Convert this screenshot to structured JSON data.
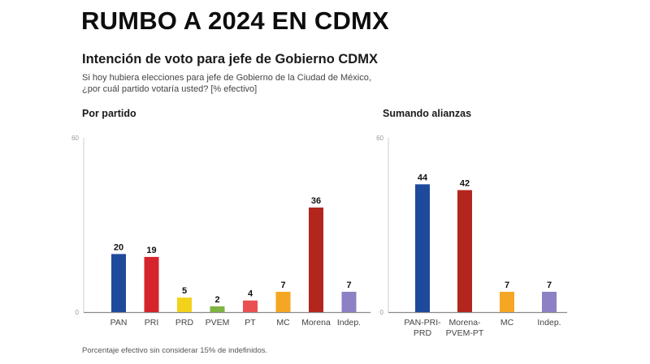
{
  "header": {
    "title": "RUMBO A 2024 EN CDMX",
    "subtitle": "Intención de voto para jefe de Gobierno CDMX",
    "question_line1": "Si hoy hubiera elecciones para jefe de Gobierno de la Ciudad de México,",
    "question_line2": "¿por cuál partido votaría usted? [% efectivo]"
  },
  "footnote": "Porcentaje efectivo sin considerar 15% de indefinidos.",
  "chart_data": [
    {
      "type": "bar",
      "panel_label": "Por partido",
      "categories": [
        "PAN",
        "PRI",
        "PRD",
        "PVEM",
        "PT",
        "MC",
        "Morena",
        "Indep."
      ],
      "values": [
        20,
        19,
        5,
        2,
        4,
        7,
        36,
        7
      ],
      "colors": [
        "#1f4a9c",
        "#d6242c",
        "#f2d21b",
        "#7fb342",
        "#e9504f",
        "#f5a623",
        "#b3261e",
        "#8e80c4"
      ],
      "ylim": [
        0,
        60
      ],
      "yticks": [
        0,
        60
      ],
      "grid": false,
      "legend": "none"
    },
    {
      "type": "bar",
      "panel_label": "Sumando alianzas",
      "categories": [
        [
          "PAN-PRI-",
          "PRD"
        ],
        [
          "Morena-",
          "PVEM-PT"
        ],
        [
          "MC"
        ],
        [
          "Indep."
        ]
      ],
      "values": [
        44,
        42,
        7,
        7
      ],
      "colors": [
        "#1f4a9c",
        "#b3261e",
        "#f5a623",
        "#8e80c4"
      ],
      "ylim": [
        0,
        60
      ],
      "yticks": [
        0,
        60
      ],
      "grid": false,
      "legend": "none"
    }
  ]
}
